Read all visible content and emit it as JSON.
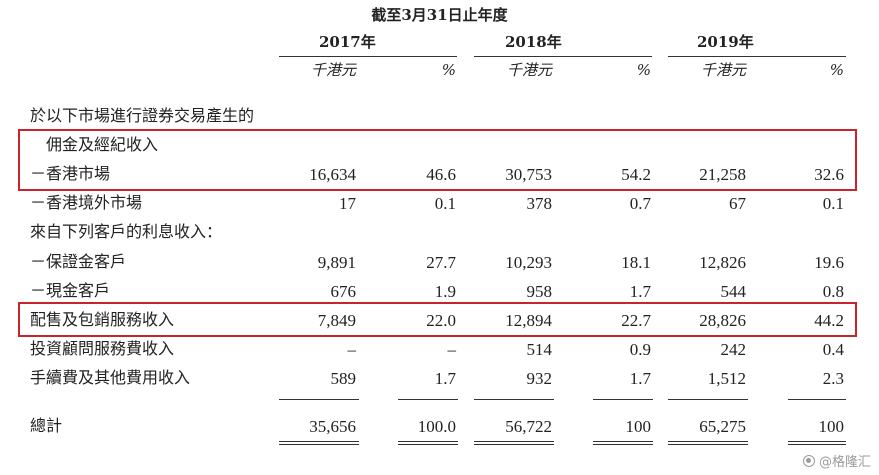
{
  "header": {
    "period": "截至3月31日止年度",
    "years": [
      "2017年",
      "2018年",
      "2019年"
    ],
    "unit_amount": "千港元",
    "unit_pct": "%"
  },
  "rows": [
    {
      "label": "於以下市場進行證券交易產生的",
      "values": [
        "",
        "",
        "",
        "",
        "",
        ""
      ]
    },
    {
      "label": "　佣金及經紀收入",
      "values": [
        "",
        "",
        "",
        "",
        "",
        ""
      ]
    },
    {
      "label": "－香港市場",
      "values": [
        "16,634",
        "46.6",
        "30,753",
        "54.2",
        "21,258",
        "32.6"
      ]
    },
    {
      "label": "－香港境外市場",
      "values": [
        "17",
        "0.1",
        "378",
        "0.7",
        "67",
        "0.1"
      ]
    },
    {
      "label": "來自下列客戶的利息收入：",
      "values": [
        "",
        "",
        "",
        "",
        "",
        ""
      ]
    },
    {
      "label": "－保證金客戶",
      "values": [
        "9,891",
        "27.7",
        "10,293",
        "18.1",
        "12,826",
        "19.6"
      ]
    },
    {
      "label": "－現金客戶",
      "values": [
        "676",
        "1.9",
        "958",
        "1.7",
        "544",
        "0.8"
      ]
    },
    {
      "label": "配售及包銷服務收入",
      "values": [
        "7,849",
        "22.0",
        "12,894",
        "22.7",
        "28,826",
        "44.2"
      ]
    },
    {
      "label": "投資顧問服務費收入",
      "values": [
        "–",
        "–",
        "514",
        "0.9",
        "242",
        "0.4"
      ]
    },
    {
      "label": "手續費及其他費用收入",
      "values": [
        "589",
        "1.7",
        "932",
        "1.7",
        "1,512",
        "2.3"
      ]
    }
  ],
  "total": {
    "label": "總計",
    "values": [
      "35,656",
      "100.0",
      "56,722",
      "100",
      "65,275",
      "100"
    ]
  },
  "highlight_color": "#c8242b",
  "watermark": {
    "text": "@格隆汇",
    "icon": "gelonghui-logo-icon"
  }
}
